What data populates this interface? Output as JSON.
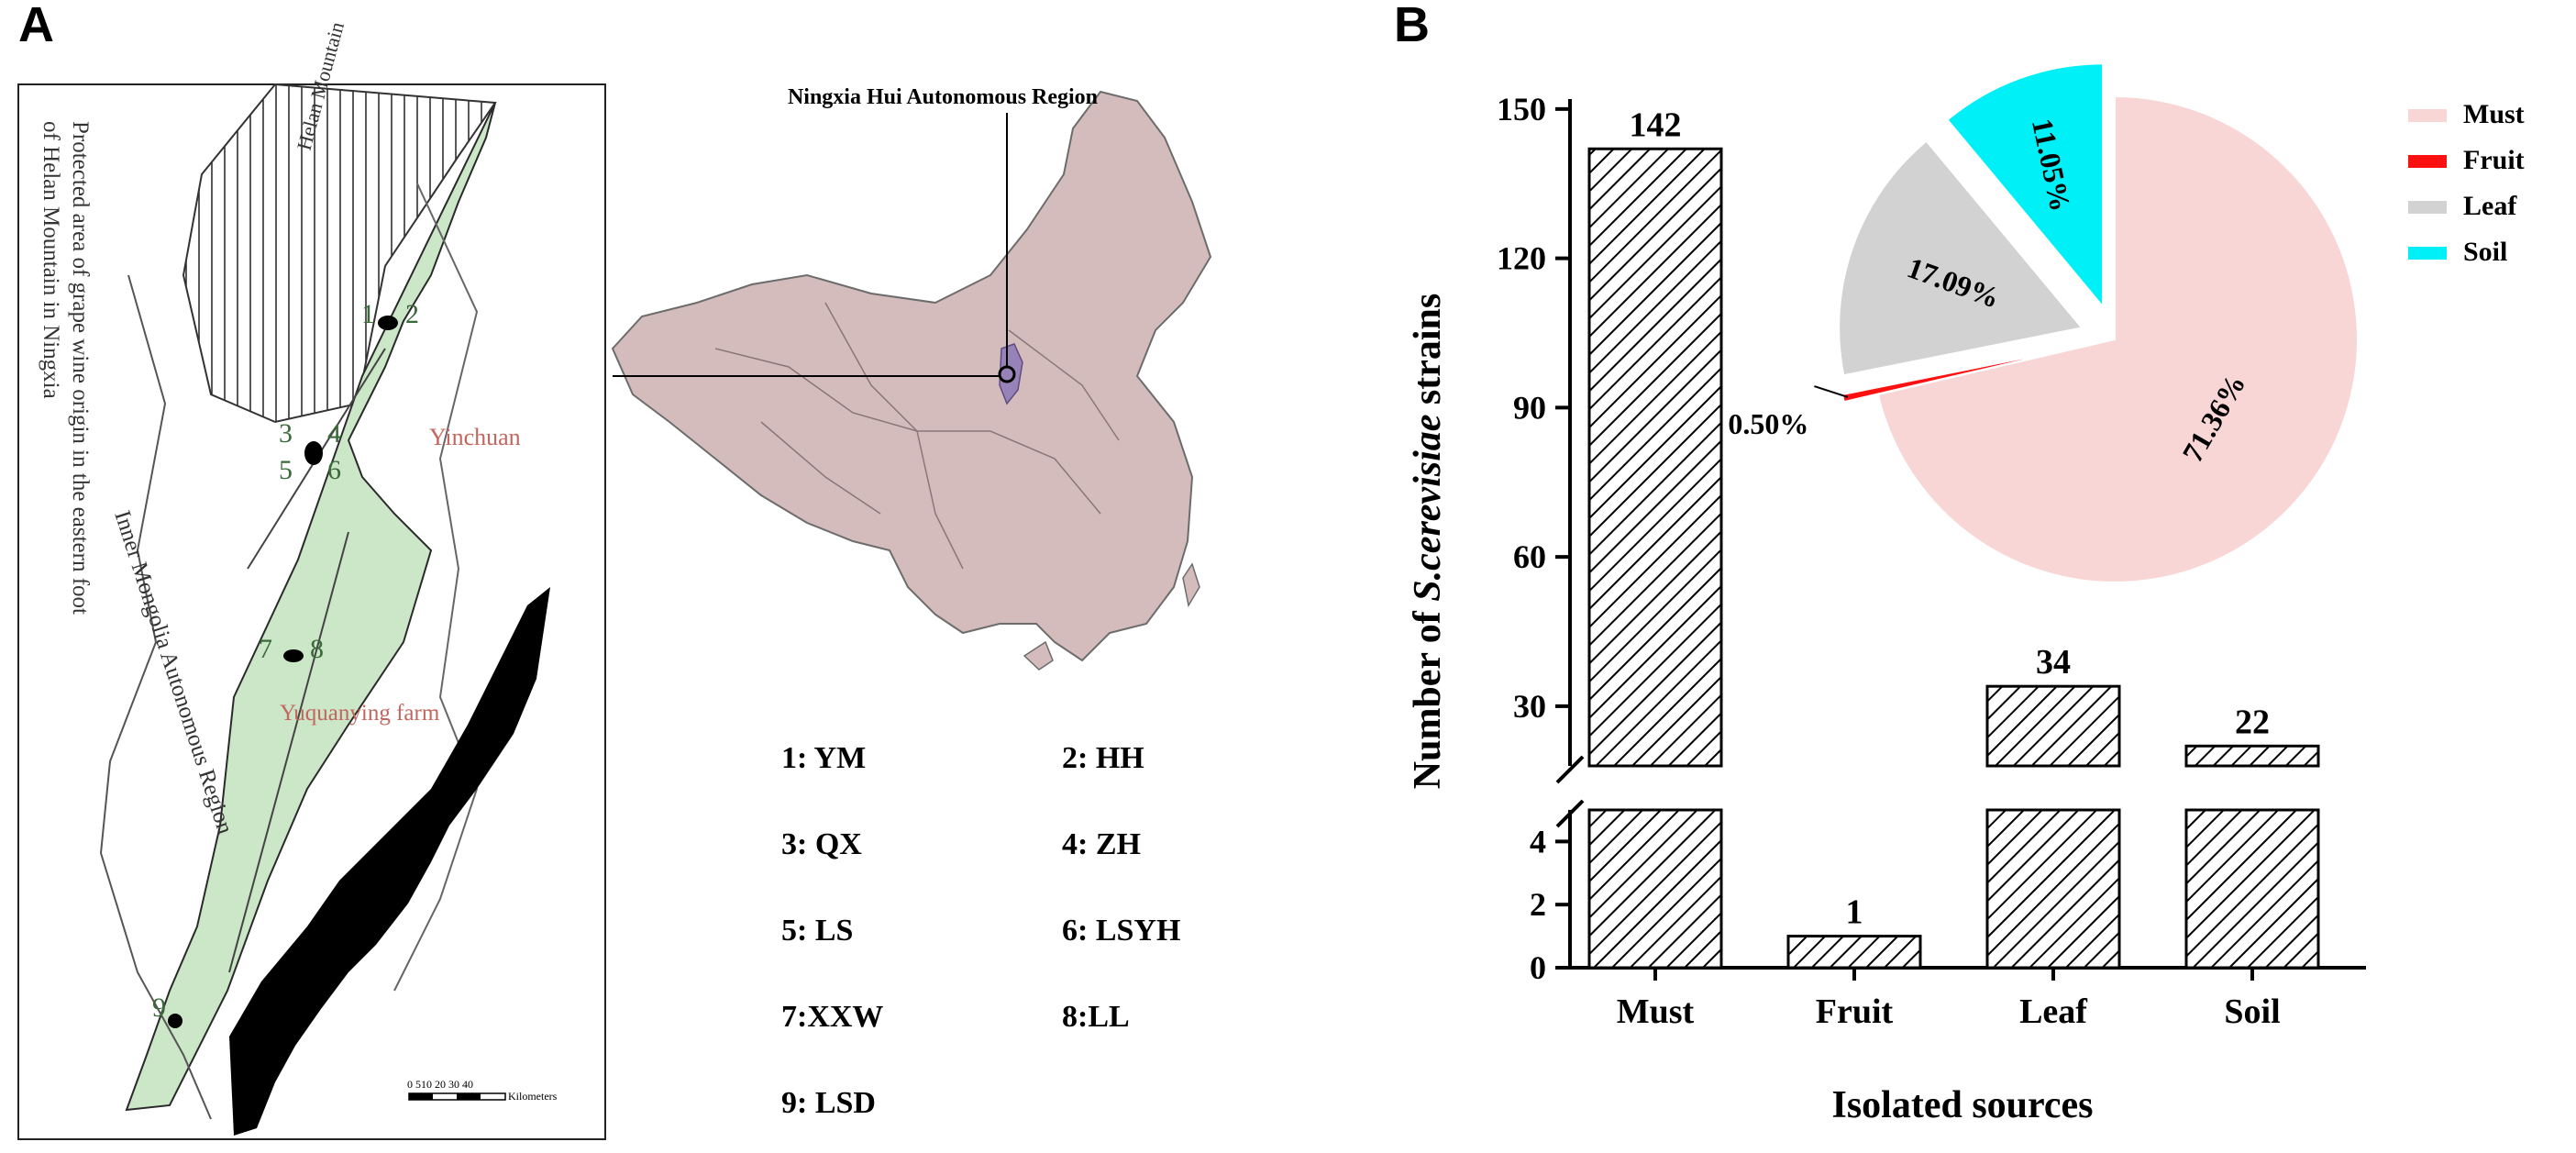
{
  "panel_a": {
    "label": "A",
    "map_title": "Protected area of grape wine origin in the eastern foot of Helan Mountain in Ningxia",
    "mountain_label": "Helan Mountain",
    "city_label": "Yinchuan",
    "farm_label": "Yuquanying farm",
    "region_label": "Inner Mongolia Autonomous Region",
    "scale_ticks": "0 510 20 30 40",
    "scale_unit": "Kilometers",
    "site_numbers": [
      "1",
      "2",
      "3",
      "4",
      "5",
      "6",
      "7",
      "8",
      "9"
    ],
    "china_map_label": "Ningxia Hui Autonomous Region",
    "site_key": [
      {
        "text": "1: YM"
      },
      {
        "text": "2: HH"
      },
      {
        "text": "3: QX"
      },
      {
        "text": "4: ZH"
      },
      {
        "text": "5: LS"
      },
      {
        "text": "6: LSYH"
      },
      {
        "text": "7:XXW"
      },
      {
        "text": "8:LL"
      },
      {
        "text": "9: LSD"
      }
    ]
  },
  "panel_b": {
    "label": "B"
  },
  "chart_data": [
    {
      "type": "bar",
      "title": "",
      "categories": [
        "Must",
        "Fruit",
        "Leaf",
        "Soil"
      ],
      "values": [
        142,
        1,
        34,
        22
      ],
      "data_labels": [
        "142",
        "1",
        "34",
        "22"
      ],
      "xlabel": "Isolated  sources",
      "ylabel_prefix": "Number of ",
      "ylabel_italic": "S.cerevisiae",
      "ylabel_suffix": " strains",
      "y_axis_break": true,
      "lower_segment": {
        "ylim": [
          0,
          5
        ],
        "ticks": [
          0,
          2,
          4
        ]
      },
      "upper_segment": {
        "ylim": [
          18,
          152
        ],
        "ticks": [
          30,
          60,
          90,
          120,
          150
        ]
      },
      "bar_fill": "diagonal hatch",
      "grid": false
    },
    {
      "type": "pie",
      "title": "",
      "labels": [
        "Must",
        "Fruit",
        "Leaf",
        "Soil"
      ],
      "values": [
        71.36,
        0.5,
        17.09,
        11.05
      ],
      "value_labels": [
        "71.36%",
        "0.50%",
        "17.09%",
        "11.05%"
      ],
      "colors": [
        "#f9d6d6",
        "#ff1010",
        "#d2d2d2",
        "#00f0f7"
      ],
      "exploded": true,
      "legend_position": "top-right"
    }
  ]
}
